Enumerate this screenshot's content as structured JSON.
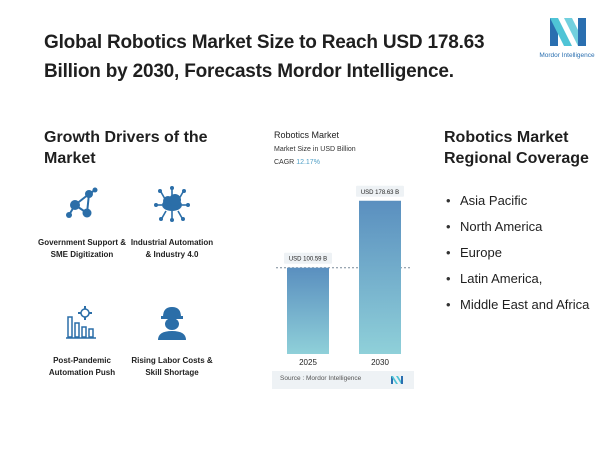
{
  "headline": "Global Robotics Market Size to Reach USD 178.63 Billion by 2030, Forecasts Mordor Intelligence.",
  "brand": {
    "name": "Mordor Intelligence",
    "color": "#2a6fb0",
    "accent": "#4fc4d6"
  },
  "drivers": {
    "title": "Growth Drivers of the Market",
    "items": [
      {
        "label": "Government Support & SME Digitization",
        "icon": "network-nodes-icon"
      },
      {
        "label": "Industrial Automation & Industry 4.0",
        "icon": "cloud-network-icon"
      },
      {
        "label": "Post-Pandemic Automation Push",
        "icon": "bar-chart-gear-icon"
      },
      {
        "label": "Rising Labor Costs & Skill Shortage",
        "icon": "worker-icon"
      }
    ]
  },
  "chart": {
    "title": "Robotics Market",
    "subtitle": "Market Size in USD Billion",
    "cagr_label": "CAGR",
    "cagr_value": "12.17%",
    "source": "Source : Mordor Intelligence"
  },
  "chart_data": {
    "type": "bar",
    "title": "Robotics Market",
    "subtitle": "Market Size in USD Billion",
    "categories": [
      "2025",
      "2030"
    ],
    "values": [
      100.59,
      178.63
    ],
    "data_labels": [
      "USD 100.59 B",
      "USD 178.63 B"
    ],
    "ylim": [
      0,
      190
    ],
    "grid": false,
    "bar_color_top": "#5a8fbf",
    "bar_color_bottom": "#8fd0d9"
  },
  "regions": {
    "title": "Robotics Market Regional Coverage",
    "items": [
      "Asia Pacific",
      "North America",
      "Europe",
      "Latin America,",
      "Middle East and Africa"
    ]
  }
}
